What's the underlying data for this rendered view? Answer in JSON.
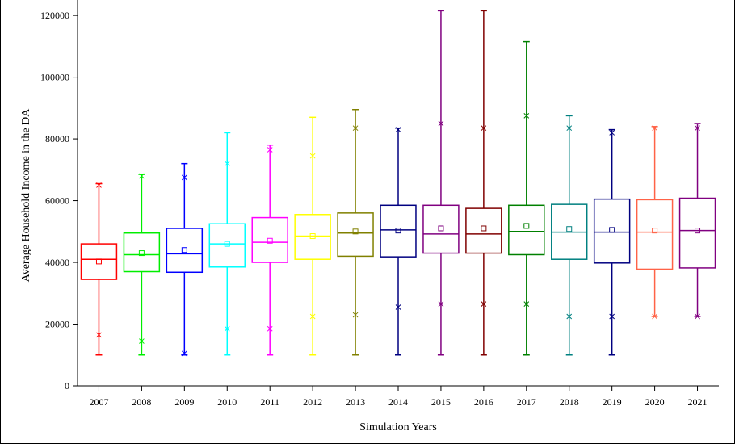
{
  "chart_data": {
    "type": "box",
    "title": "",
    "xlabel": "Simulation Years",
    "ylabel": "Average Household Income in the DA",
    "ylim": [
      0,
      125000
    ],
    "yticks": [
      0,
      20000,
      40000,
      60000,
      80000,
      100000,
      120000
    ],
    "ytick_labels": [
      "0",
      "20000",
      "40000",
      "60000",
      "80000",
      "100000",
      "120000"
    ],
    "categories": [
      "2007",
      "2008",
      "2009",
      "2010",
      "2011",
      "2012",
      "2013",
      "2014",
      "2015",
      "2016",
      "2017",
      "2018",
      "2019",
      "2020",
      "2021"
    ],
    "colors": [
      "#ff0000",
      "#00ee00",
      "#0000ff",
      "#00ffff",
      "#ff00ff",
      "#ffff00",
      "#808000",
      "#000080",
      "#800080",
      "#800000",
      "#008000",
      "#008080",
      "#000080",
      "#ff6347",
      "#800080"
    ],
    "series": [
      {
        "name": "2007",
        "min": 10000,
        "q1": 34500,
        "median": 41000,
        "q3": 46000,
        "max": 65500,
        "mean": 40300,
        "p1": 16500,
        "p99": 65000
      },
      {
        "name": "2008",
        "min": 10000,
        "q1": 37000,
        "median": 42500,
        "q3": 49500,
        "max": 68500,
        "mean": 43000,
        "p1": 14500,
        "p99": 68000
      },
      {
        "name": "2009",
        "min": 10000,
        "q1": 36800,
        "median": 42800,
        "q3": 51000,
        "max": 72000,
        "mean": 44000,
        "p1": 10500,
        "p99": 67500
      },
      {
        "name": "2010",
        "min": 10000,
        "q1": 38500,
        "median": 46000,
        "q3": 52500,
        "max": 82000,
        "mean": 46000,
        "p1": 18500,
        "p99": 72000
      },
      {
        "name": "2011",
        "min": 10000,
        "q1": 40000,
        "median": 46500,
        "q3": 54500,
        "max": 78000,
        "mean": 47000,
        "p1": 18500,
        "p99": 76500
      },
      {
        "name": "2012",
        "min": 10000,
        "q1": 41000,
        "median": 48500,
        "q3": 55500,
        "max": 87000,
        "mean": 48500,
        "p1": 22500,
        "p99": 74500
      },
      {
        "name": "2013",
        "min": 10000,
        "q1": 42000,
        "median": 49500,
        "q3": 56000,
        "max": 89500,
        "mean": 50000,
        "p1": 23000,
        "p99": 83500
      },
      {
        "name": "2014",
        "min": 10000,
        "q1": 41800,
        "median": 50500,
        "q3": 58500,
        "max": 83500,
        "mean": 50300,
        "p1": 25500,
        "p99": 83000
      },
      {
        "name": "2015",
        "min": 10000,
        "q1": 43000,
        "median": 49200,
        "q3": 58500,
        "max": 121500,
        "mean": 51000,
        "p1": 26500,
        "p99": 85000
      },
      {
        "name": "2016",
        "min": 10000,
        "q1": 43000,
        "median": 49200,
        "q3": 57500,
        "max": 121500,
        "mean": 51000,
        "p1": 26500,
        "p99": 83500
      },
      {
        "name": "2017",
        "min": 10000,
        "q1": 42500,
        "median": 50000,
        "q3": 58500,
        "max": 111500,
        "mean": 51800,
        "p1": 26500,
        "p99": 87500
      },
      {
        "name": "2018",
        "min": 10000,
        "q1": 41000,
        "median": 49800,
        "q3": 58800,
        "max": 87500,
        "mean": 50800,
        "p1": 22500,
        "p99": 83500
      },
      {
        "name": "2019",
        "min": 10000,
        "q1": 39800,
        "median": 49800,
        "q3": 60500,
        "max": 83000,
        "mean": 50500,
        "p1": 22500,
        "p99": 82000
      },
      {
        "name": "2020",
        "min": 22500,
        "q1": 37800,
        "median": 49800,
        "q3": 60300,
        "max": 84000,
        "mean": 50300,
        "p1": 22500,
        "p99": 83500
      },
      {
        "name": "2021",
        "min": 22500,
        "q1": 38200,
        "median": 50300,
        "q3": 60800,
        "max": 85000,
        "mean": 50300,
        "p1": 22500,
        "p99": 83500
      }
    ]
  }
}
